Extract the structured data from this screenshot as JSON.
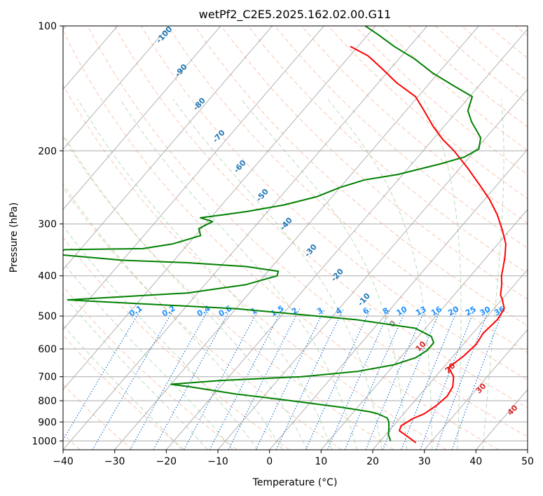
{
  "chart_data": {
    "type": "line",
    "title": "wetPf2_C2E5.2025.162.02.00.G11",
    "xlabel": "Temperature (°C)",
    "ylabel": "Pressure (hPa)",
    "xlim": [
      -40,
      50
    ],
    "ylim": [
      1050,
      100
    ],
    "y_scale": "log",
    "x_ticks": [
      -40,
      -30,
      -20,
      -10,
      0,
      10,
      20,
      30,
      40,
      50
    ],
    "x_tick_labels": [
      "−40",
      "−30",
      "−20",
      "−10",
      "0",
      "10",
      "20",
      "30",
      "40",
      "50"
    ],
    "y_ticks": [
      100,
      200,
      300,
      400,
      500,
      600,
      700,
      800,
      900,
      1000
    ],
    "y_tick_labels": [
      "100",
      "200",
      "300",
      "400",
      "500",
      "600",
      "700",
      "800",
      "900",
      "1000"
    ],
    "grid": true,
    "skew": 30,
    "series": [
      {
        "id": "temperature",
        "color": "#ff0000",
        "points": [
          [
            27.2,
            1010
          ],
          [
            24.5,
            975
          ],
          [
            22.0,
            945
          ],
          [
            21.5,
            920
          ],
          [
            22.5,
            885
          ],
          [
            24.0,
            860
          ],
          [
            25.0,
            820
          ],
          [
            25.5,
            780
          ],
          [
            25.0,
            740
          ],
          [
            23.5,
            700
          ],
          [
            21.0,
            665
          ],
          [
            22.0,
            625
          ],
          [
            22.5,
            585
          ],
          [
            22.0,
            550
          ],
          [
            22.5,
            510
          ],
          [
            22.0,
            480
          ],
          [
            20.0,
            455
          ],
          [
            19.0,
            445
          ],
          [
            17.5,
            420
          ],
          [
            16.0,
            400
          ],
          [
            14.8,
            380
          ],
          [
            13.5,
            360
          ],
          [
            11.5,
            335
          ],
          [
            8.5,
            310
          ],
          [
            5.0,
            285
          ],
          [
            1.0,
            262
          ],
          [
            -3.5,
            241
          ],
          [
            -8.5,
            220
          ],
          [
            -14.0,
            200
          ],
          [
            -18.0,
            188
          ],
          [
            -22.0,
            175
          ],
          [
            -26.5,
            160
          ],
          [
            -30.5,
            148
          ],
          [
            -36.5,
            137
          ],
          [
            -42.0,
            126
          ],
          [
            -46.5,
            118
          ],
          [
            -51.5,
            112
          ]
        ]
      },
      {
        "id": "dewpoint",
        "color": "#008000",
        "points": [
          [
            22.0,
            1000
          ],
          [
            20.5,
            965
          ],
          [
            19.5,
            930
          ],
          [
            18.5,
            900
          ],
          [
            17.5,
            880
          ],
          [
            15.0,
            860
          ],
          [
            13.0,
            850
          ],
          [
            7.0,
            830
          ],
          [
            -4.0,
            800
          ],
          [
            -16.0,
            770
          ],
          [
            -26.0,
            740
          ],
          [
            -30.0,
            730
          ],
          [
            -21.0,
            715
          ],
          [
            -6.0,
            700
          ],
          [
            4.0,
            680
          ],
          [
            10.0,
            655
          ],
          [
            13.0,
            630
          ],
          [
            14.0,
            605
          ],
          [
            14.0,
            580
          ],
          [
            12.5,
            560
          ],
          [
            8.0,
            535
          ],
          [
            -5.0,
            510
          ],
          [
            -30.0,
            480
          ],
          [
            -60.0,
            460
          ],
          [
            -64.0,
            457
          ],
          [
            -55.0,
            450
          ],
          [
            -42.0,
            440
          ],
          [
            -32.0,
            420
          ],
          [
            -27.5,
            400
          ],
          [
            -28.0,
            390
          ],
          [
            -35.0,
            380
          ],
          [
            -47.0,
            372
          ],
          [
            -60.0,
            367
          ],
          [
            -74.0,
            355
          ],
          [
            -73.0,
            346
          ],
          [
            -58.0,
            344
          ],
          [
            -53.0,
            335
          ],
          [
            -49.0,
            320
          ],
          [
            -50.5,
            308
          ],
          [
            -49.0,
            296
          ],
          [
            -52.0,
            290
          ],
          [
            -48.0,
            285
          ],
          [
            -44.0,
            280
          ],
          [
            -38.0,
            270
          ],
          [
            -33.0,
            258
          ],
          [
            -30.0,
            245
          ],
          [
            -26.5,
            235
          ],
          [
            -21.0,
            228
          ],
          [
            -14.5,
            215
          ],
          [
            -11.0,
            207
          ],
          [
            -9.5,
            198
          ],
          [
            -11.0,
            186
          ],
          [
            -15.5,
            170
          ],
          [
            -18.0,
            160
          ],
          [
            -19.5,
            148
          ],
          [
            -24.5,
            140
          ],
          [
            -31.0,
            130
          ],
          [
            -37.0,
            120
          ],
          [
            -43.0,
            112
          ],
          [
            -48.0,
            105
          ],
          [
            -52.0,
            100
          ]
        ]
      }
    ],
    "dry_adiabat_labels": [
      "-100",
      "-90",
      "-80",
      "-70",
      "-60",
      "-50",
      "-40",
      "-30",
      "-20",
      "-10"
    ],
    "mixing_ratio_labels": [
      "0.1",
      "0.2",
      "0.4",
      "0.6",
      "1",
      "1.5",
      "2",
      "3",
      "4",
      "6",
      "8",
      "10",
      "13",
      "16",
      "20",
      "25",
      "30",
      "36"
    ],
    "moist_adiabat_labels": [
      "0",
      "10",
      "20",
      "30",
      "40"
    ],
    "colors": {
      "temperature": "#ff0000",
      "dewpoint": "#008000",
      "dry_adiabat": "#f5a07a",
      "moist_adiabat": "#7fbf7f",
      "mixing_ratio": "#1f77d4",
      "isotherm": "#999999",
      "dry_label": "#1f77b4",
      "mixing_label": "#1e90ff",
      "moist_label": "#d62728",
      "zero_label": "#888888"
    }
  }
}
